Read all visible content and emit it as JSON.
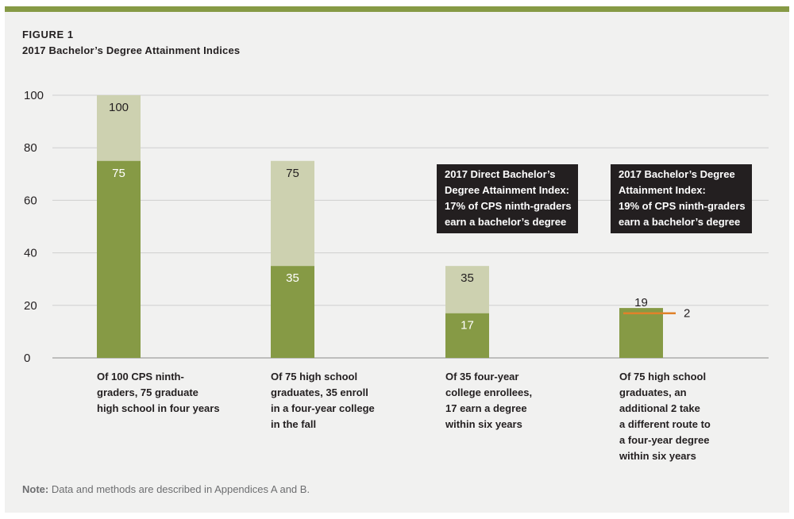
{
  "figure": {
    "label": "FIGURE 1",
    "title": "2017 Bachelor’s Degree Attainment Indices",
    "note_prefix": "Note:",
    "note_text": " Data and methods are described in Appendices A and B."
  },
  "colors": {
    "rule": "#869a45",
    "bar_dark": "#869a45",
    "bar_light": "#cdd1b0",
    "marker": "#e0822a",
    "callout_bg": "#231f20",
    "grid": "#cfcfcf"
  },
  "chart_data": {
    "type": "bar",
    "stacked": true,
    "ylim": [
      0,
      100
    ],
    "yticks": [
      0,
      20,
      40,
      60,
      80,
      100
    ],
    "grid": true,
    "categories": [
      "Of 100 CPS ninth-graders, 75 graduate high school in four years",
      "Of 75 high school graduates, 35 enroll in a four-year college in the fall",
      "Of 35 four-year college enrollees, 17 earn a degree within six years",
      "Of 75 high school graduates, an additional 2 take a different route to a four-year degree within six years"
    ],
    "category_lines": [
      [
        "Of 100 CPS ninth-",
        "graders, 75 graduate",
        "high school in four years"
      ],
      [
        "Of 75 high school",
        "graduates, 35 enroll",
        "in a four-year college",
        "in the fall"
      ],
      [
        "Of 35 four-year",
        "college enrollees,",
        "17 earn a degree",
        "within six years"
      ],
      [
        "Of 75 high school",
        "graduates, an",
        "additional 2 take",
        "a different route to",
        "a four-year degree",
        "within six years"
      ]
    ],
    "bars": [
      {
        "total": 100,
        "part": 75,
        "total_label": "100",
        "part_label": "75"
      },
      {
        "total": 75,
        "part": 35,
        "total_label": "75",
        "part_label": "35"
      },
      {
        "total": 35,
        "part": 17,
        "total_label": "35",
        "part_label": "17"
      },
      {
        "total": 19,
        "part": 19,
        "total_label": "19",
        "part_label": "",
        "marker_value": 17,
        "marker_label": "2"
      }
    ],
    "annotations": [
      {
        "lines": [
          "2017 Direct Bachelor’s",
          "Degree Attainment Index:",
          "17% of CPS ninth-graders",
          "earn a bachelor’s degree"
        ]
      },
      {
        "lines": [
          "2017 Bachelor’s Degree",
          "Attainment Index:",
          "19% of CPS ninth-graders",
          "earn a bachelor’s degree"
        ]
      }
    ]
  }
}
